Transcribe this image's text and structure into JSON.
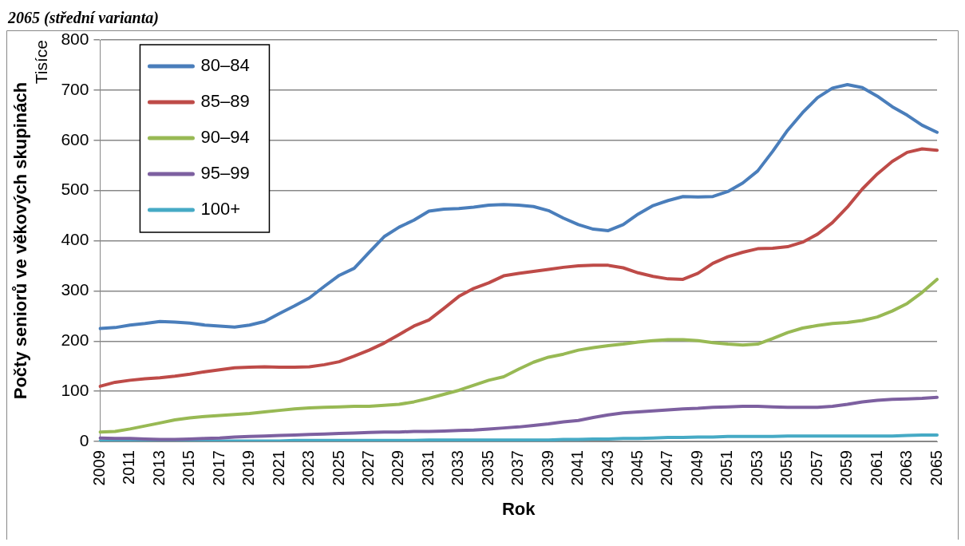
{
  "chart_data": {
    "type": "line",
    "title": "2065 (střední varianta)",
    "xlabel": "Rok",
    "ylabel": "Počty seniorů ve věkových skupinách",
    "annotations": [
      "Tisíce"
    ],
    "categories": [
      "2009",
      null,
      "2011",
      null,
      "2013",
      null,
      "2015",
      null,
      "2017",
      null,
      "2019",
      null,
      "2021",
      null,
      "2023",
      null,
      "2025",
      null,
      "2027",
      null,
      "2029",
      null,
      "2031",
      null,
      "2033",
      null,
      "2035",
      null,
      "2037",
      null,
      "2039",
      null,
      "2041",
      null,
      "2043",
      null,
      "2045",
      null,
      "2047",
      null,
      "2049",
      null,
      "2051",
      null,
      "2053",
      null,
      "2055",
      null,
      "2057",
      null,
      "2059",
      null,
      "2061",
      null,
      "2063",
      null,
      "2065"
    ],
    "ylim": [
      0,
      800
    ],
    "yticks": [
      0,
      100,
      200,
      300,
      400,
      500,
      600,
      700,
      800
    ],
    "grid": "y",
    "legend": "top left",
    "marker": "none",
    "line_style": "solid",
    "series": [
      {
        "name": "80–84",
        "color": "#4a7ebb",
        "values": [
          225,
          227,
          232,
          235,
          239,
          238,
          236,
          232,
          230,
          228,
          232,
          239,
          255,
          270,
          286,
          309,
          331,
          345,
          377,
          408,
          427,
          441,
          459,
          463,
          464,
          467,
          471,
          472,
          471,
          468,
          460,
          445,
          432,
          423,
          420,
          432,
          453,
          470,
          480,
          488,
          487,
          488,
          498,
          515,
          539,
          578,
          620,
          655,
          685,
          704,
          711,
          705,
          688,
          667,
          650,
          630,
          616
        ]
      },
      {
        "name": "85–89",
        "color": "#be4b48",
        "values": [
          110,
          118,
          122,
          125,
          127,
          130,
          134,
          139,
          143,
          147,
          148,
          149,
          148,
          148,
          149,
          153,
          159,
          170,
          182,
          196,
          213,
          230,
          242,
          265,
          289,
          305,
          316,
          330,
          335,
          339,
          343,
          347,
          350,
          351,
          351,
          346,
          336,
          329,
          324,
          323,
          335,
          355,
          368,
          377,
          384,
          385,
          388,
          397,
          413,
          436,
          467,
          503,
          533,
          558,
          576,
          583,
          580
        ]
      },
      {
        "name": "90–94",
        "color": "#98b954",
        "values": [
          19,
          20,
          25,
          31,
          37,
          43,
          47,
          50,
          52,
          54,
          56,
          59,
          62,
          65,
          67,
          68,
          69,
          70,
          70,
          72,
          74,
          79,
          86,
          94,
          102,
          112,
          122,
          129,
          144,
          158,
          168,
          174,
          182,
          187,
          191,
          194,
          198,
          201,
          203,
          203,
          201,
          197,
          194,
          192,
          194,
          205,
          217,
          226,
          231,
          235,
          237,
          241,
          248,
          260,
          275,
          297,
          323
        ]
      },
      {
        "name": "95–99",
        "color": "#7d60a0",
        "values": [
          7,
          6,
          6,
          5,
          4,
          4,
          5,
          6,
          7,
          9,
          10,
          11,
          12,
          13,
          14,
          15,
          16,
          17,
          18,
          19,
          19,
          20,
          20,
          21,
          22,
          23,
          25,
          27,
          29,
          32,
          35,
          39,
          42,
          48,
          53,
          57,
          59,
          61,
          63,
          65,
          66,
          68,
          69,
          70,
          70,
          69,
          68,
          68,
          68,
          70,
          74,
          79,
          82,
          84,
          85,
          86,
          88
        ]
      },
      {
        "name": "100+",
        "color": "#46aac5",
        "values": [
          1,
          1,
          1,
          1,
          1,
          1,
          1,
          1,
          1,
          1,
          1,
          1,
          1,
          2,
          2,
          2,
          2,
          2,
          2,
          2,
          2,
          2,
          3,
          3,
          3,
          3,
          3,
          3,
          3,
          3,
          3,
          4,
          4,
          5,
          5,
          6,
          6,
          7,
          8,
          8,
          9,
          9,
          10,
          10,
          10,
          10,
          11,
          11,
          11,
          11,
          11,
          11,
          11,
          11,
          12,
          13,
          13
        ]
      }
    ]
  }
}
